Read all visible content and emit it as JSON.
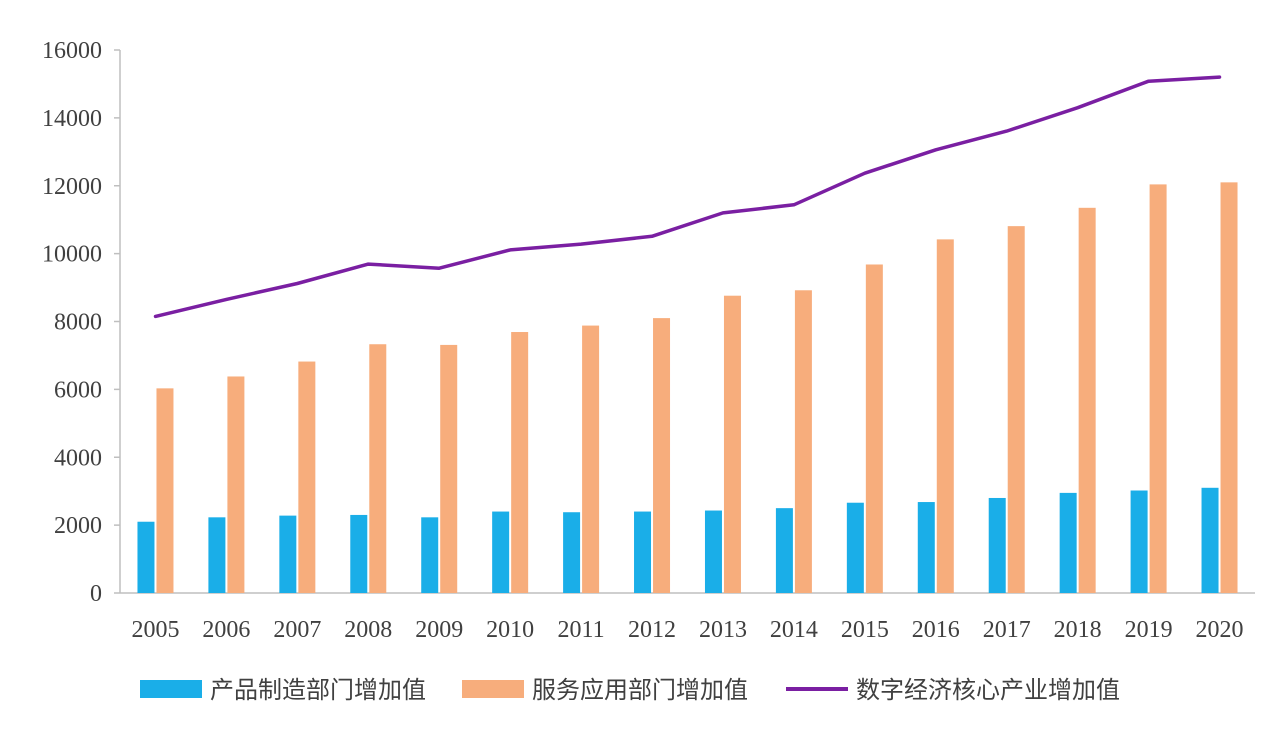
{
  "chart_data": {
    "type": "bar",
    "categories": [
      "2005",
      "2006",
      "2007",
      "2008",
      "2009",
      "2010",
      "2011",
      "2012",
      "2013",
      "2014",
      "2015",
      "2016",
      "2017",
      "2018",
      "2019",
      "2020"
    ],
    "series": [
      {
        "name": "产品制造部门增加值",
        "type": "bar",
        "color": "#1aaee8",
        "values": [
          2100,
          2230,
          2280,
          2300,
          2230,
          2400,
          2380,
          2400,
          2430,
          2500,
          2660,
          2680,
          2800,
          2950,
          3020,
          3100
        ]
      },
      {
        "name": "服务应用部门增加值",
        "type": "bar",
        "color": "#f7ad7c",
        "values": [
          6030,
          6380,
          6820,
          7330,
          7310,
          7690,
          7880,
          8100,
          8760,
          8920,
          9680,
          10420,
          10810,
          11350,
          12040,
          12100
        ]
      },
      {
        "name": "数字经济核心产业增加值",
        "type": "line",
        "color": "#7a1fa2",
        "values": [
          8150,
          8650,
          9120,
          9690,
          9570,
          10110,
          10280,
          10510,
          11200,
          11440,
          12370,
          13060,
          13610,
          14300,
          15080,
          15200
        ]
      }
    ],
    "ylim": [
      0,
      16000
    ],
    "yticks": [
      "0",
      "2000",
      "4000",
      "6000",
      "8000",
      "10000",
      "12000",
      "14000",
      "16000"
    ],
    "grid": false,
    "legend_position": "bottom"
  }
}
